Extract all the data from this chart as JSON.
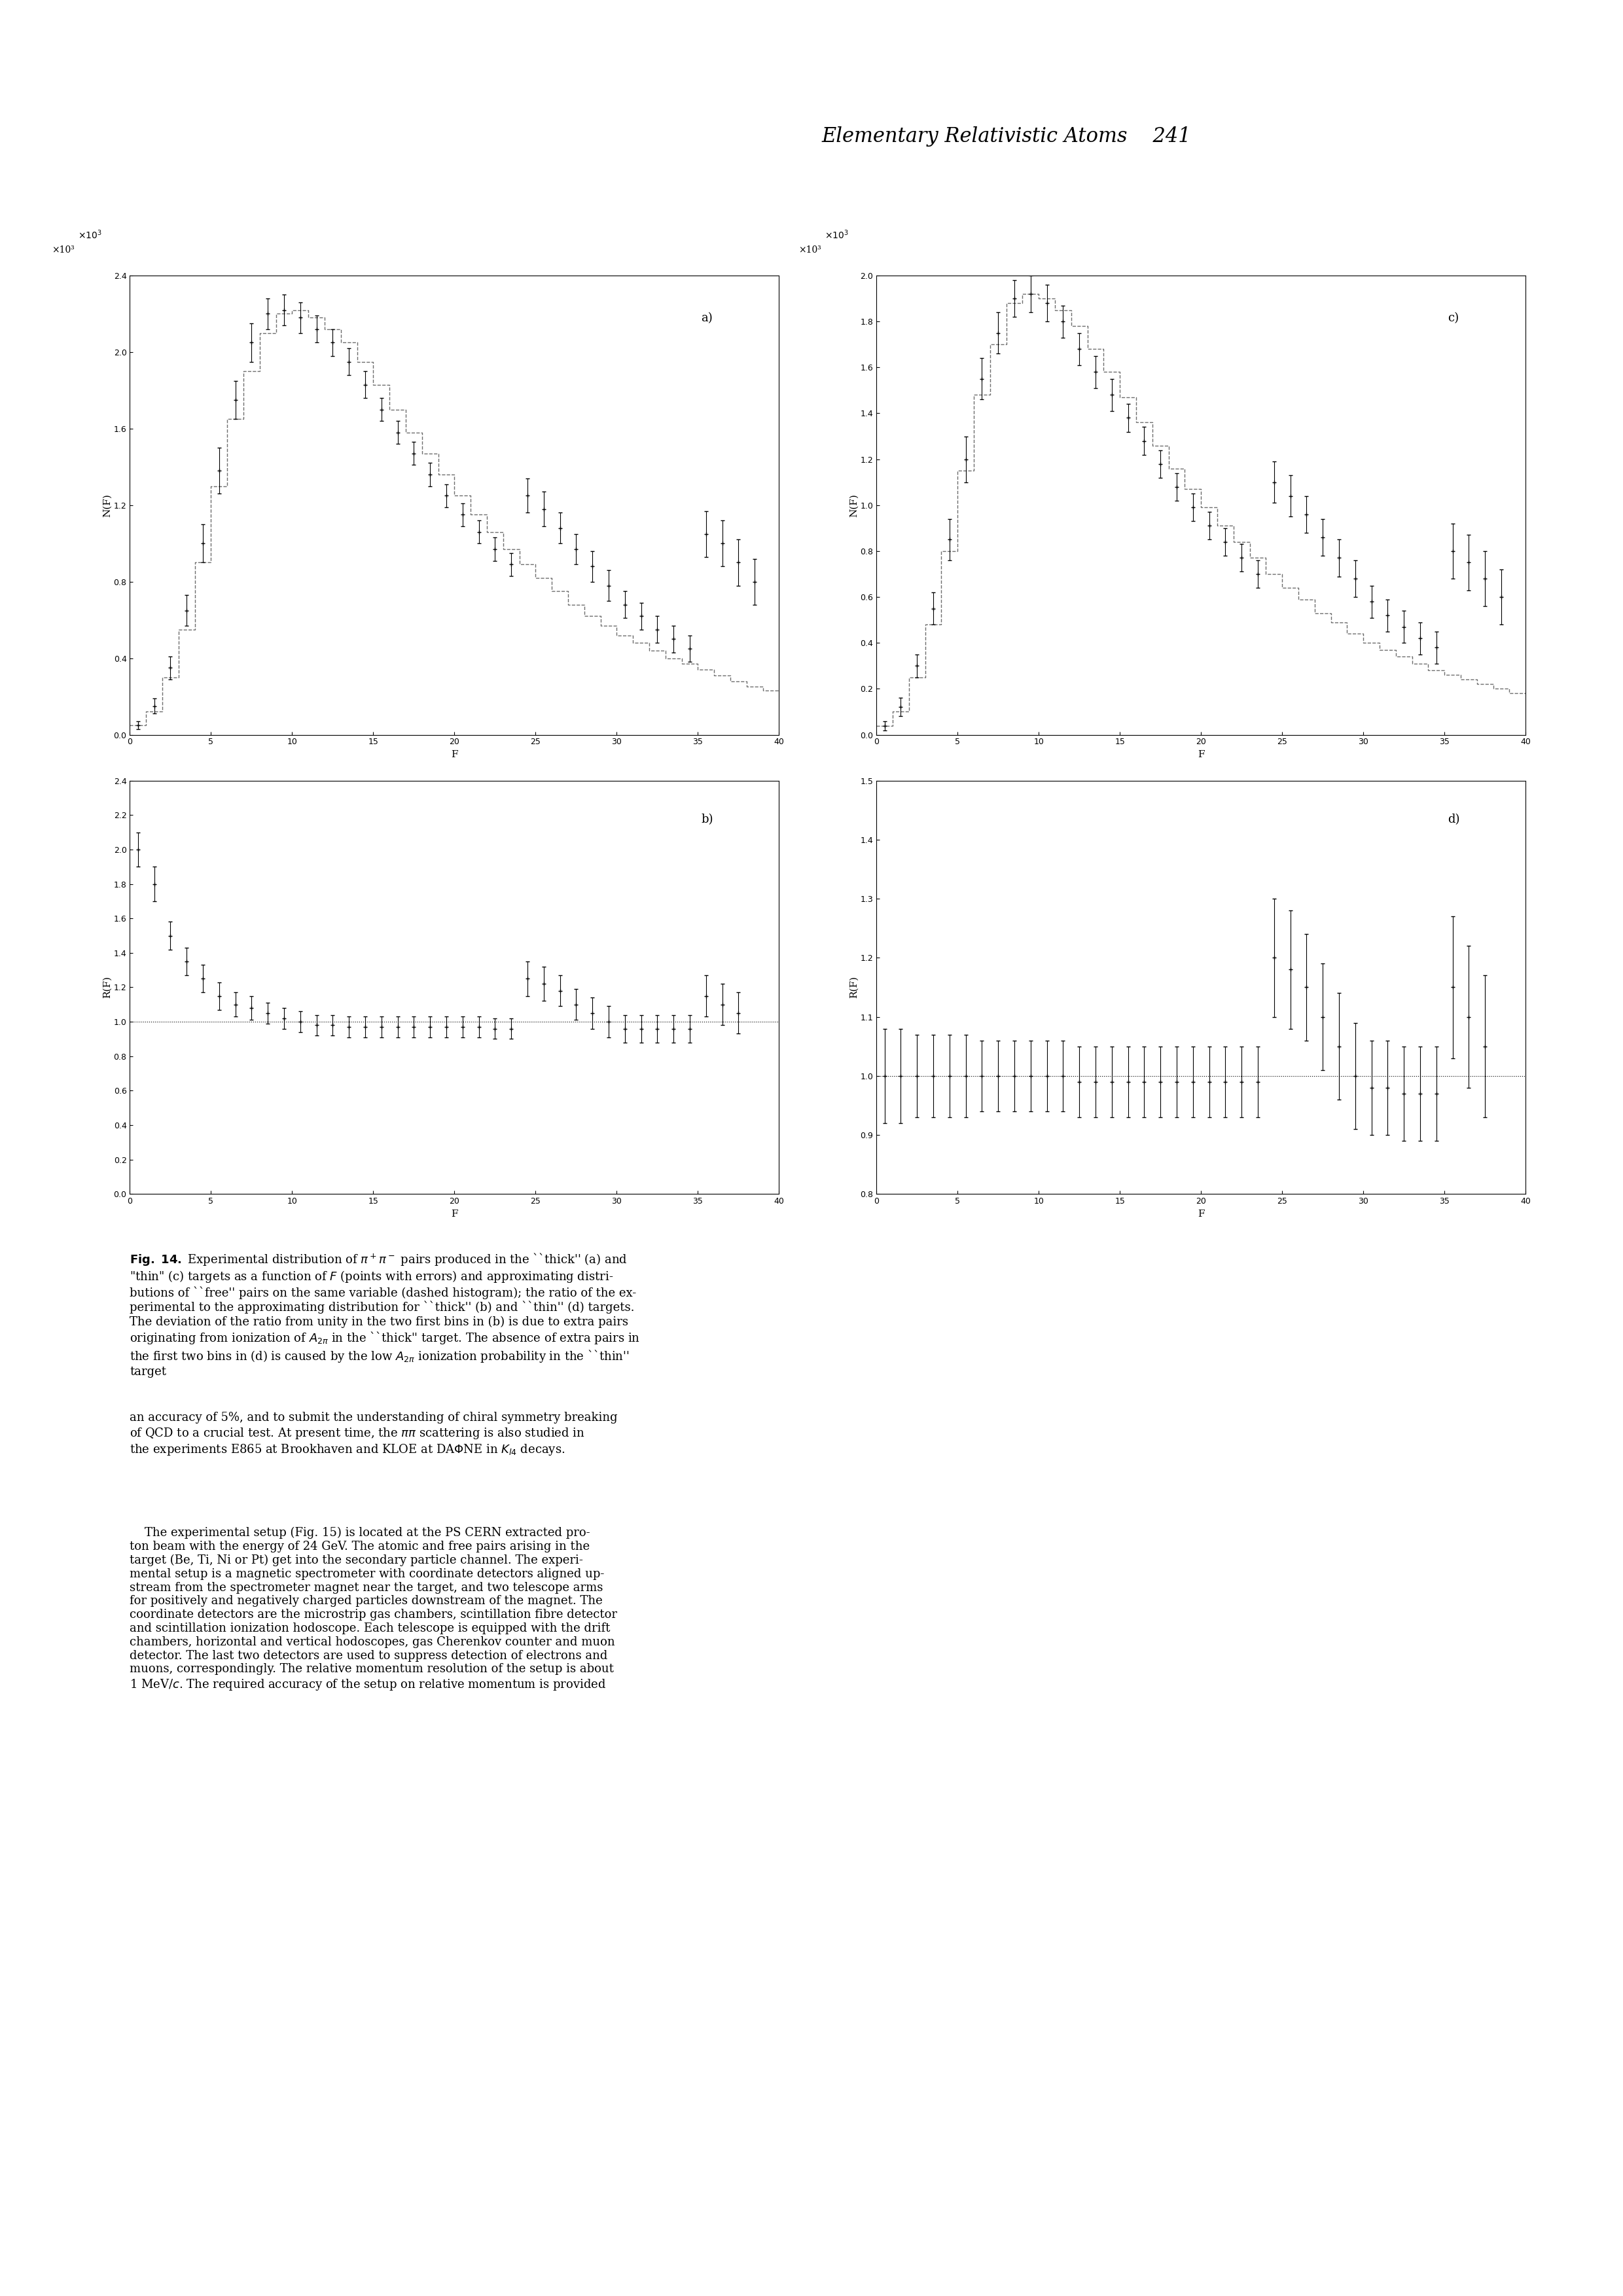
{
  "page_header": "Elementary Relativistic Atoms    241",
  "fig_caption": "Fig. 14. Experimental distribution of π⁺π⁻ pairs produced in the “thick” (a) and “thin” (c) targets as a function of F (points with errors) and approximating distributions of “free” pairs on the same variable (dashed histogram); the ratio of the experimental to the approximating distribution for thick (b) and thin (d) targets. The deviation of the ratio from unity in the two first bins in (b) is due to extra pairs originating from ionization of A₂π in the “thick” target. The absence of extra pairs in the first two bins in (d) is caused by the low A₂π ionization probability in the “thin” target",
  "panel_a": {
    "label": "a)",
    "ylabel": "N(F)",
    "ylabel_scale": "×10³",
    "xlabel": "F",
    "xlim": [
      0,
      40
    ],
    "ylim": [
      0,
      2.4
    ],
    "yticks": [
      0,
      0.4,
      0.8,
      1.2,
      1.6,
      2.0,
      2.4
    ],
    "xticks": [
      0,
      5,
      10,
      15,
      20,
      25,
      30,
      35,
      40
    ],
    "dashed_hist_x": [
      0,
      1,
      2,
      3,
      4,
      5,
      6,
      7,
      8,
      9,
      10,
      11,
      12,
      13,
      14,
      15,
      16,
      17,
      18,
      19,
      20,
      21,
      22,
      23,
      24,
      25,
      26,
      27,
      28,
      29,
      30,
      31,
      32,
      33,
      34,
      35,
      36,
      37,
      38,
      39
    ],
    "dashed_hist_y": [
      0.05,
      0.12,
      0.3,
      0.55,
      0.9,
      1.3,
      1.65,
      1.9,
      2.1,
      2.2,
      2.22,
      2.18,
      2.12,
      2.05,
      1.95,
      1.83,
      1.7,
      1.58,
      1.47,
      1.36,
      1.25,
      1.15,
      1.06,
      0.97,
      0.89,
      0.82,
      0.75,
      0.68,
      0.62,
      0.57,
      0.52,
      0.48,
      0.44,
      0.4,
      0.37,
      0.34,
      0.31,
      0.28,
      0.25,
      0.23
    ],
    "data_x": [
      0.5,
      1.5,
      2.5,
      3.5,
      4.5,
      5.5,
      6.5,
      7.5,
      8.5,
      9.5,
      10.5,
      11.5,
      12.5,
      13.5,
      14.5,
      15.5,
      16.5,
      17.5,
      18.5,
      19.5,
      20.5,
      21.5,
      22.5,
      23.5,
      24.5,
      25.5,
      26.5,
      27.5,
      28.5,
      29.5,
      30.5,
      31.5,
      32.5,
      33.5,
      34.5,
      35.5,
      36.5,
      37.5,
      38.5
    ],
    "data_y": [
      0.05,
      0.15,
      0.35,
      0.65,
      1.0,
      1.38,
      1.75,
      2.05,
      2.2,
      2.22,
      2.18,
      2.12,
      2.05,
      1.95,
      1.83,
      1.7,
      1.58,
      1.47,
      1.36,
      1.25,
      1.15,
      1.06,
      0.97,
      0.89,
      1.25,
      1.18,
      1.08,
      0.97,
      0.88,
      0.78,
      0.68,
      0.62,
      0.55,
      0.5,
      0.45,
      1.05,
      1.0,
      0.9,
      0.8
    ],
    "data_yerr": [
      0.02,
      0.04,
      0.06,
      0.08,
      0.1,
      0.12,
      0.1,
      0.1,
      0.08,
      0.08,
      0.08,
      0.07,
      0.07,
      0.07,
      0.07,
      0.06,
      0.06,
      0.06,
      0.06,
      0.06,
      0.06,
      0.06,
      0.06,
      0.06,
      0.09,
      0.09,
      0.08,
      0.08,
      0.08,
      0.08,
      0.07,
      0.07,
      0.07,
      0.07,
      0.07,
      0.12,
      0.12,
      0.12,
      0.12
    ]
  },
  "panel_b": {
    "label": "b)",
    "ylabel": "R(F)",
    "xlabel": "F",
    "xlim": [
      0,
      40
    ],
    "ylim": [
      0,
      2.4
    ],
    "yticks": [
      0,
      0.2,
      0.4,
      0.6,
      0.8,
      1.0,
      1.2,
      1.4,
      1.6,
      1.8,
      2.0,
      2.2,
      2.4
    ],
    "xticks": [
      0,
      5,
      10,
      15,
      20,
      25,
      30,
      35,
      40
    ],
    "data_x": [
      0.5,
      1.5,
      2.5,
      3.5,
      4.5,
      5.5,
      6.5,
      7.5,
      8.5,
      9.5,
      10.5,
      11.5,
      12.5,
      13.5,
      14.5,
      15.5,
      16.5,
      17.5,
      18.5,
      19.5,
      20.5,
      21.5,
      22.5,
      23.5,
      24.5,
      25.5,
      26.5,
      27.5,
      28.5,
      29.5,
      30.5,
      31.5,
      32.5,
      33.5,
      34.5,
      35.5,
      36.5,
      37.5
    ],
    "data_y": [
      2.0,
      1.8,
      1.5,
      1.35,
      1.25,
      1.15,
      1.1,
      1.08,
      1.05,
      1.02,
      1.0,
      0.98,
      0.98,
      0.97,
      0.97,
      0.97,
      0.97,
      0.97,
      0.97,
      0.97,
      0.97,
      0.97,
      0.96,
      0.96,
      1.25,
      1.22,
      1.18,
      1.1,
      1.05,
      1.0,
      0.96,
      0.96,
      0.96,
      0.96,
      0.96,
      1.15,
      1.1,
      1.05
    ],
    "data_yerr": [
      0.1,
      0.1,
      0.08,
      0.08,
      0.08,
      0.08,
      0.07,
      0.07,
      0.06,
      0.06,
      0.06,
      0.06,
      0.06,
      0.06,
      0.06,
      0.06,
      0.06,
      0.06,
      0.06,
      0.06,
      0.06,
      0.06,
      0.06,
      0.06,
      0.1,
      0.1,
      0.09,
      0.09,
      0.09,
      0.09,
      0.08,
      0.08,
      0.08,
      0.08,
      0.08,
      0.12,
      0.12,
      0.12
    ],
    "unity_line": 1.0
  },
  "panel_c": {
    "label": "c)",
    "ylabel": "N(F)",
    "ylabel_scale": "×10³",
    "xlabel": "F",
    "xlim": [
      0,
      40
    ],
    "ylim": [
      0,
      2.0
    ],
    "yticks": [
      0,
      0.2,
      0.4,
      0.6,
      0.8,
      1.0,
      1.2,
      1.4,
      1.6,
      1.8,
      2.0
    ],
    "xticks": [
      0,
      5,
      10,
      15,
      20,
      25,
      30,
      35,
      40
    ],
    "dashed_hist_x": [
      0,
      1,
      2,
      3,
      4,
      5,
      6,
      7,
      8,
      9,
      10,
      11,
      12,
      13,
      14,
      15,
      16,
      17,
      18,
      19,
      20,
      21,
      22,
      23,
      24,
      25,
      26,
      27,
      28,
      29,
      30,
      31,
      32,
      33,
      34,
      35,
      36,
      37,
      38,
      39
    ],
    "dashed_hist_y": [
      0.04,
      0.1,
      0.25,
      0.48,
      0.8,
      1.15,
      1.48,
      1.7,
      1.88,
      1.92,
      1.9,
      1.85,
      1.78,
      1.68,
      1.58,
      1.47,
      1.36,
      1.26,
      1.16,
      1.07,
      0.99,
      0.91,
      0.84,
      0.77,
      0.7,
      0.64,
      0.59,
      0.53,
      0.49,
      0.44,
      0.4,
      0.37,
      0.34,
      0.31,
      0.28,
      0.26,
      0.24,
      0.22,
      0.2,
      0.18
    ],
    "data_x": [
      0.5,
      1.5,
      2.5,
      3.5,
      4.5,
      5.5,
      6.5,
      7.5,
      8.5,
      9.5,
      10.5,
      11.5,
      12.5,
      13.5,
      14.5,
      15.5,
      16.5,
      17.5,
      18.5,
      19.5,
      20.5,
      21.5,
      22.5,
      23.5,
      24.5,
      25.5,
      26.5,
      27.5,
      28.5,
      29.5,
      30.5,
      31.5,
      32.5,
      33.5,
      34.5,
      35.5,
      36.5,
      37.5,
      38.5
    ],
    "data_y": [
      0.04,
      0.12,
      0.3,
      0.55,
      0.85,
      1.2,
      1.55,
      1.75,
      1.9,
      1.92,
      1.88,
      1.8,
      1.68,
      1.58,
      1.48,
      1.38,
      1.28,
      1.18,
      1.08,
      0.99,
      0.91,
      0.84,
      0.77,
      0.7,
      1.1,
      1.04,
      0.96,
      0.86,
      0.77,
      0.68,
      0.58,
      0.52,
      0.47,
      0.42,
      0.38,
      0.8,
      0.75,
      0.68,
      0.6
    ],
    "data_yerr": [
      0.02,
      0.04,
      0.05,
      0.07,
      0.09,
      0.1,
      0.09,
      0.09,
      0.08,
      0.08,
      0.08,
      0.07,
      0.07,
      0.07,
      0.07,
      0.06,
      0.06,
      0.06,
      0.06,
      0.06,
      0.06,
      0.06,
      0.06,
      0.06,
      0.09,
      0.09,
      0.08,
      0.08,
      0.08,
      0.08,
      0.07,
      0.07,
      0.07,
      0.07,
      0.07,
      0.12,
      0.12,
      0.12,
      0.12
    ]
  },
  "panel_d": {
    "label": "d)",
    "ylabel": "R(F)",
    "xlabel": "F",
    "xlim": [
      0,
      40
    ],
    "ylim": [
      0.8,
      1.5
    ],
    "yticks": [
      0.8,
      0.9,
      1.0,
      1.1,
      1.2,
      1.3,
      1.4,
      1.5
    ],
    "xticks": [
      0,
      5,
      10,
      15,
      20,
      25,
      30,
      35,
      40
    ],
    "data_x": [
      0.5,
      1.5,
      2.5,
      3.5,
      4.5,
      5.5,
      6.5,
      7.5,
      8.5,
      9.5,
      10.5,
      11.5,
      12.5,
      13.5,
      14.5,
      15.5,
      16.5,
      17.5,
      18.5,
      19.5,
      20.5,
      21.5,
      22.5,
      23.5,
      24.5,
      25.5,
      26.5,
      27.5,
      28.5,
      29.5,
      30.5,
      31.5,
      32.5,
      33.5,
      34.5,
      35.5,
      36.5,
      37.5
    ],
    "data_y": [
      1.0,
      1.0,
      1.0,
      1.0,
      1.0,
      1.0,
      1.0,
      1.0,
      1.0,
      1.0,
      1.0,
      1.0,
      0.99,
      0.99,
      0.99,
      0.99,
      0.99,
      0.99,
      0.99,
      0.99,
      0.99,
      0.99,
      0.99,
      0.99,
      1.2,
      1.18,
      1.15,
      1.1,
      1.05,
      1.0,
      0.98,
      0.98,
      0.97,
      0.97,
      0.97,
      1.15,
      1.1,
      1.05
    ],
    "data_yerr": [
      0.08,
      0.08,
      0.07,
      0.07,
      0.07,
      0.07,
      0.06,
      0.06,
      0.06,
      0.06,
      0.06,
      0.06,
      0.06,
      0.06,
      0.06,
      0.06,
      0.06,
      0.06,
      0.06,
      0.06,
      0.06,
      0.06,
      0.06,
      0.06,
      0.1,
      0.1,
      0.09,
      0.09,
      0.09,
      0.09,
      0.08,
      0.08,
      0.08,
      0.08,
      0.08,
      0.12,
      0.12,
      0.12
    ],
    "unity_line": 1.0
  },
  "background_color": "#ffffff",
  "plot_color": "#000000",
  "dashed_color": "#555555"
}
